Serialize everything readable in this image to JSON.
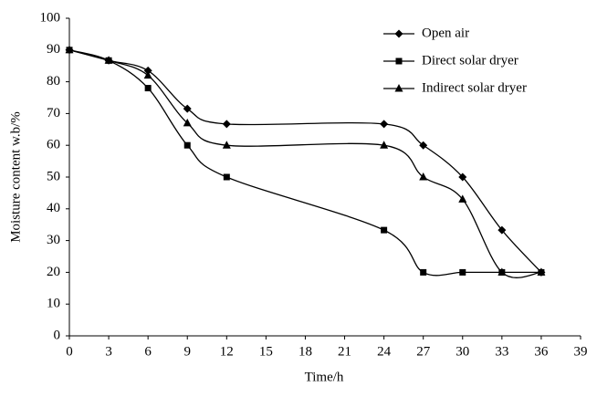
{
  "chart_data": {
    "type": "line",
    "x_label": "Time/h",
    "y_label": "Moisture content w.b/%",
    "x": [
      0,
      3,
      6,
      9,
      12,
      24,
      27,
      30,
      33,
      36
    ],
    "series": [
      {
        "name": "Open air",
        "color": "#000000",
        "marker": "diamond",
        "values": [
          90,
          86.7,
          83.5,
          71.5,
          66.7,
          66.7,
          60,
          50,
          33.3,
          20
        ]
      },
      {
        "name": "Direct solar dryer",
        "color": "#000000",
        "marker": "square",
        "values": [
          90,
          86.7,
          78,
          60,
          50,
          33.3,
          20,
          20,
          20,
          20
        ]
      },
      {
        "name": "Indirect solar dryer",
        "color": "#000000",
        "marker": "triangle",
        "values": [
          90,
          86.7,
          82,
          67,
          60,
          60,
          50,
          43,
          20,
          20
        ]
      }
    ],
    "xlim": [
      0,
      39
    ],
    "xticks": [
      0,
      3,
      6,
      9,
      12,
      15,
      18,
      21,
      24,
      27,
      30,
      33,
      36,
      39
    ],
    "ylim": [
      0,
      100
    ],
    "yticks": [
      0,
      10,
      20,
      30,
      40,
      50,
      60,
      70,
      80,
      90,
      100
    ],
    "grid": false,
    "legend": "upper right"
  }
}
